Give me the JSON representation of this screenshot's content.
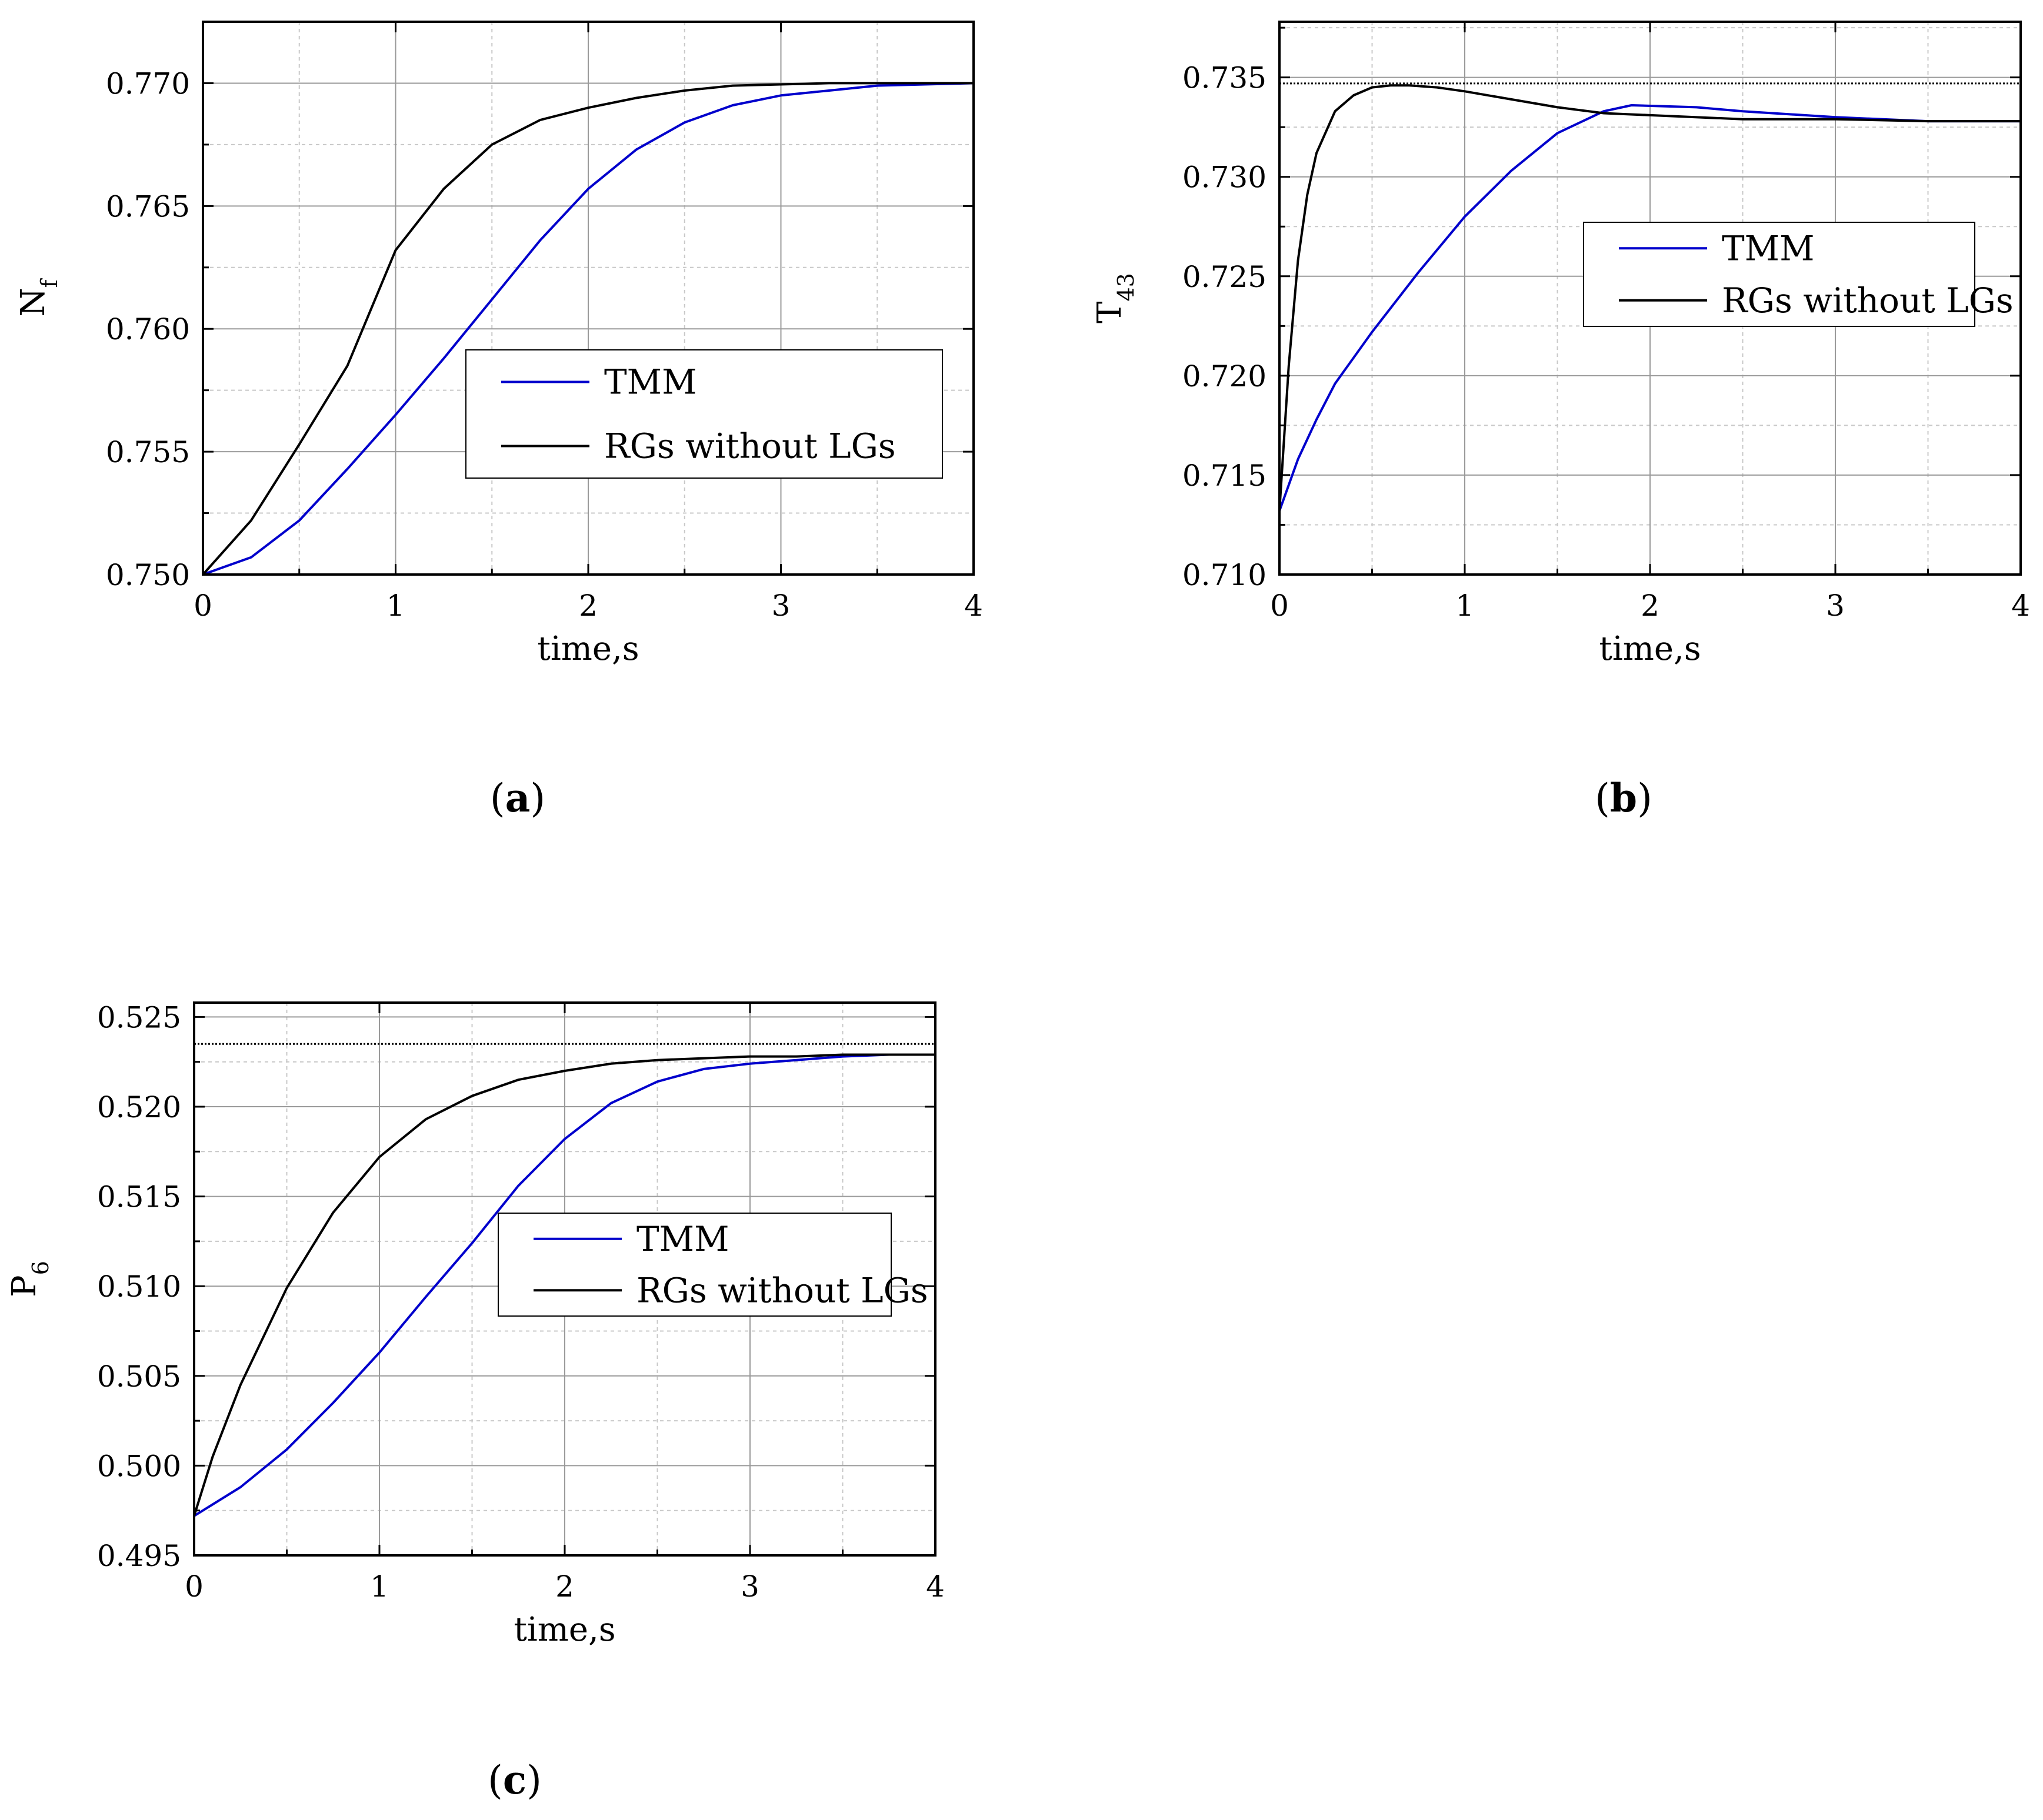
{
  "chart_data": [
    {
      "panel_label": {
        "open": "(",
        "letter": "a",
        "close": ")"
      },
      "type": "line",
      "xlabel": "time,s",
      "ylabel": {
        "main": "N",
        "sub": "f"
      },
      "xlim": [
        0,
        4
      ],
      "ylim": [
        0.75,
        0.7725
      ],
      "x_ticks": [
        "0",
        "1",
        "2",
        "3",
        "4"
      ],
      "y_ticks": [
        "0.750",
        "0.755",
        "0.760",
        "0.765",
        "0.770"
      ],
      "grid": true,
      "legend_position": "center-right",
      "reference_line": null,
      "series": [
        {
          "name": "TMM",
          "color": "#0000cc",
          "x": [
            0,
            0.25,
            0.5,
            0.75,
            1,
            1.25,
            1.5,
            1.75,
            2,
            2.25,
            2.5,
            2.75,
            3,
            3.25,
            3.5,
            3.75,
            4
          ],
          "y": [
            0.75,
            0.7507,
            0.7522,
            0.7543,
            0.7565,
            0.7588,
            0.7612,
            0.7636,
            0.7657,
            0.7673,
            0.7684,
            0.7691,
            0.7695,
            0.7697,
            0.7699,
            0.76995,
            0.77
          ]
        },
        {
          "name": "RGs without LGs",
          "color": "#000000",
          "x": [
            0,
            0.25,
            0.5,
            0.75,
            1,
            1.25,
            1.5,
            1.75,
            2,
            2.25,
            2.5,
            2.75,
            3,
            3.25,
            3.5,
            3.75,
            4
          ],
          "y": [
            0.75,
            0.7522,
            0.7553,
            0.7585,
            0.7632,
            0.7657,
            0.7675,
            0.7685,
            0.769,
            0.7694,
            0.7697,
            0.7699,
            0.76995,
            0.77,
            0.77,
            0.77,
            0.77
          ]
        }
      ]
    },
    {
      "panel_label": {
        "open": "(",
        "letter": "b",
        "close": ")"
      },
      "type": "line",
      "xlabel": "time,s",
      "ylabel": {
        "main": "T",
        "sub": "43"
      },
      "xlim": [
        0,
        4
      ],
      "ylim": [
        0.71,
        0.7378
      ],
      "x_ticks": [
        "0",
        "1",
        "2",
        "3",
        "4"
      ],
      "y_ticks": [
        "0.710",
        "0.715",
        "0.720",
        "0.725",
        "0.730",
        "0.735"
      ],
      "grid": true,
      "legend_position": "upper-right",
      "reference_line": 0.7347,
      "series": [
        {
          "name": "TMM",
          "color": "#0000cc",
          "x": [
            0,
            0.1,
            0.2,
            0.3,
            0.5,
            0.75,
            1,
            1.25,
            1.5,
            1.75,
            1.9,
            2.25,
            2.5,
            3,
            3.5,
            4
          ],
          "y": [
            0.7132,
            0.7158,
            0.7178,
            0.7196,
            0.7222,
            0.7252,
            0.728,
            0.7303,
            0.7322,
            0.7333,
            0.7336,
            0.7335,
            0.7333,
            0.733,
            0.7328,
            0.7328
          ]
        },
        {
          "name": "RGs without LGs",
          "color": "#000000",
          "x": [
            0,
            0.05,
            0.1,
            0.15,
            0.2,
            0.3,
            0.4,
            0.5,
            0.6,
            0.7,
            0.85,
            1,
            1.25,
            1.5,
            1.75,
            2,
            2.5,
            3,
            3.5,
            4
          ],
          "y": [
            0.7132,
            0.7205,
            0.7258,
            0.7291,
            0.7312,
            0.7333,
            0.7341,
            0.7345,
            0.7346,
            0.7346,
            0.7345,
            0.7343,
            0.7339,
            0.7335,
            0.7332,
            0.7331,
            0.7329,
            0.7329,
            0.7328,
            0.7328
          ]
        }
      ]
    },
    {
      "panel_label": {
        "open": "(",
        "letter": "c",
        "close": ")"
      },
      "type": "line",
      "xlabel": "time,s",
      "ylabel": {
        "main": "P",
        "sub": "6"
      },
      "xlim": [
        0,
        4
      ],
      "ylim": [
        0.495,
        0.5258
      ],
      "x_ticks": [
        "0",
        "1",
        "2",
        "3",
        "4"
      ],
      "y_ticks": [
        "0.495",
        "0.500",
        "0.505",
        "0.510",
        "0.515",
        "0.520",
        "0.525"
      ],
      "grid": true,
      "legend_position": "center-right",
      "reference_line": 0.5235,
      "series": [
        {
          "name": "TMM",
          "color": "#0000cc",
          "x": [
            0,
            0.25,
            0.5,
            0.75,
            1,
            1.25,
            1.5,
            1.75,
            2,
            2.25,
            2.5,
            2.75,
            3,
            3.25,
            3.5,
            3.75,
            4
          ],
          "y": [
            0.4972,
            0.4988,
            0.5009,
            0.5035,
            0.5063,
            0.5094,
            0.5124,
            0.5156,
            0.5182,
            0.5202,
            0.5214,
            0.5221,
            0.5224,
            0.5226,
            0.5228,
            0.5229,
            0.5229
          ]
        },
        {
          "name": "RGs without LGs",
          "color": "#000000",
          "x": [
            0,
            0.1,
            0.25,
            0.5,
            0.75,
            1,
            1.25,
            1.5,
            1.75,
            2,
            2.25,
            2.5,
            2.75,
            3,
            3.25,
            3.5,
            4
          ],
          "y": [
            0.4972,
            0.5005,
            0.5045,
            0.5099,
            0.5141,
            0.5172,
            0.5193,
            0.5206,
            0.5215,
            0.522,
            0.5224,
            0.5226,
            0.5227,
            0.5228,
            0.5228,
            0.5229,
            0.5229
          ]
        }
      ]
    }
  ]
}
